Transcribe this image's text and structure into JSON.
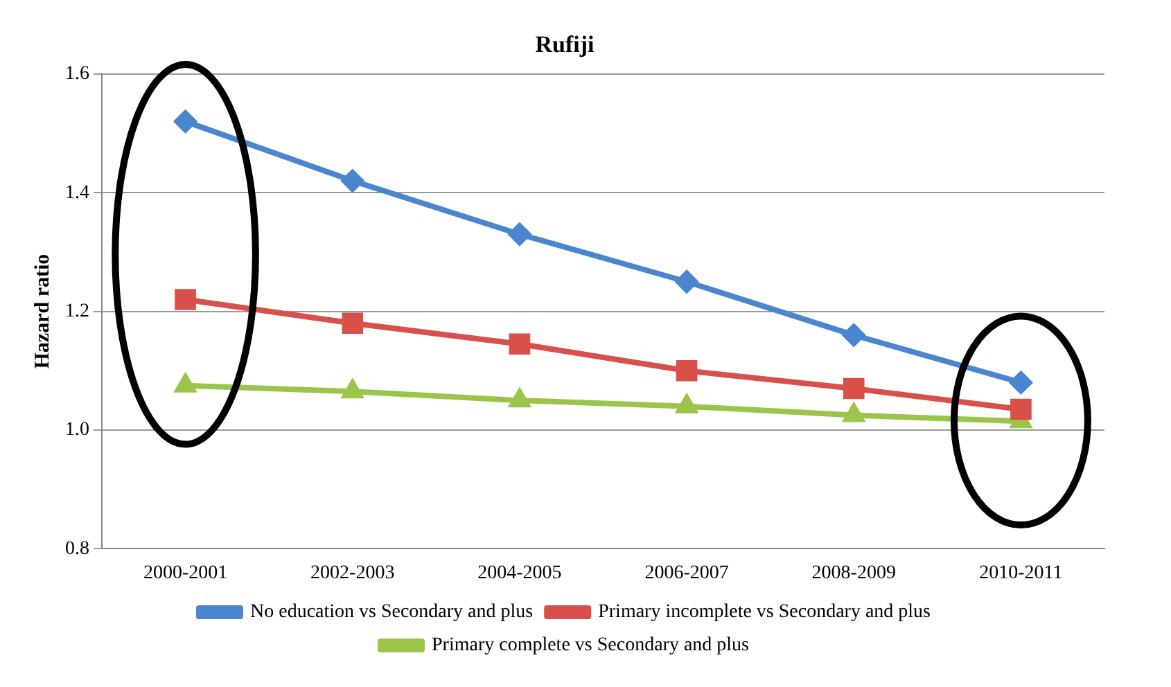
{
  "chart_data": {
    "type": "line",
    "title": "Rufiji",
    "ylabel": "Hazard ratio",
    "categories": [
      "2000-2001",
      "2002-2003",
      "2004-2005",
      "2006-2007",
      "2008-2009",
      "2010-2011"
    ],
    "series": [
      {
        "name": "No education vs Secondary and plus",
        "color": "#4a86d0",
        "marker": "diamond",
        "values": [
          1.52,
          1.42,
          1.33,
          1.25,
          1.16,
          1.08
        ]
      },
      {
        "name": "Primary incomplete vs Secondary and plus",
        "color": "#d9504a",
        "marker": "square",
        "values": [
          1.22,
          1.18,
          1.145,
          1.1,
          1.07,
          1.035
        ]
      },
      {
        "name": "Primary complete vs Secondary and plus",
        "color": "#9ac44a",
        "marker": "triangle",
        "values": [
          1.075,
          1.065,
          1.05,
          1.04,
          1.025,
          1.015
        ]
      }
    ],
    "ylim": [
      0.8,
      1.6
    ],
    "yticks": [
      {
        "value": 0.8,
        "label": "0.8"
      },
      {
        "value": 1.0,
        "label": "1.0"
      },
      {
        "value": 1.2,
        "label": "1.2"
      },
      {
        "value": 1.4,
        "label": "1.4"
      },
      {
        "value": 1.6,
        "label": "1.6"
      }
    ],
    "grid": "y",
    "legend": "bottom",
    "line_style": "solid"
  }
}
